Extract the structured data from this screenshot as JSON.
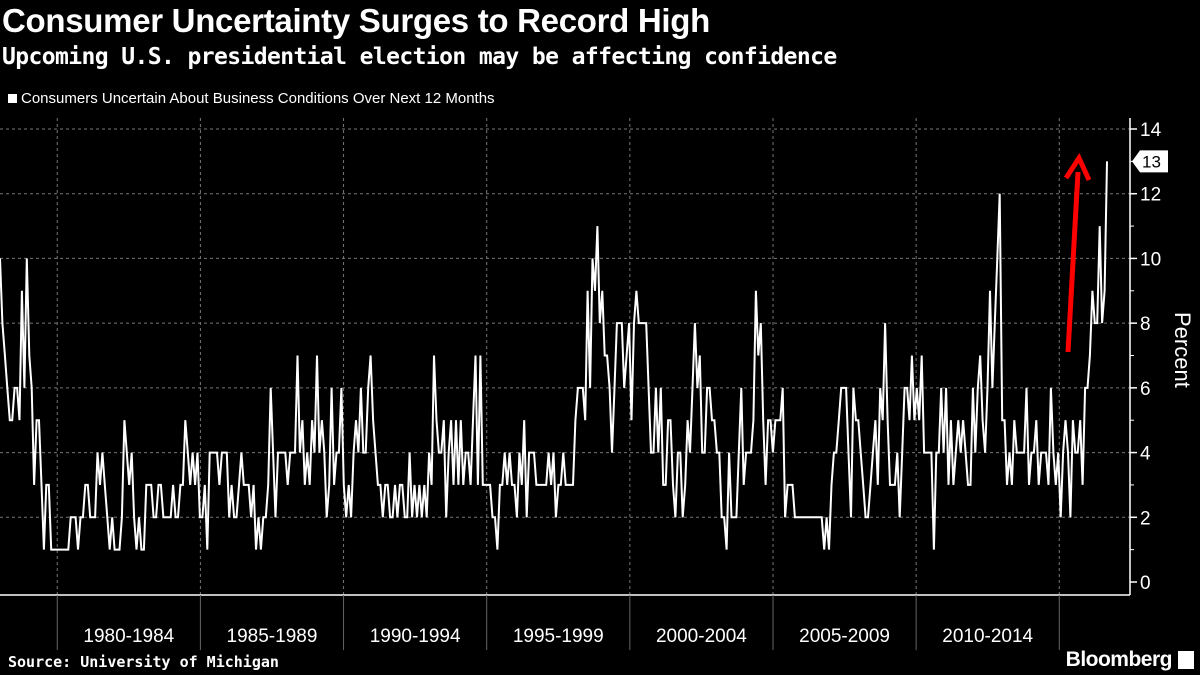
{
  "header": {
    "title": "Consumer Uncertainty Surges to Record High",
    "subtitle": "Upcoming U.S. presidential election may be affecting confidence"
  },
  "footer": {
    "source": "Source: University of Michigan",
    "brand": "Bloomberg"
  },
  "colors": {
    "background": "#000000",
    "line": "#ffffff",
    "grid": "#777777",
    "arrow": "#ff0000"
  },
  "chart_data": {
    "type": "line",
    "title": "Consumer Uncertainty Surges to Record High",
    "subtitle": "Upcoming U.S. presidential election may be affecting confidence",
    "legend": [
      "Consumers Uncertain About Business Conditions Over Next 12 Months"
    ],
    "legend_position": "top-left",
    "ylabel": "Percent",
    "y_axis_side": "right",
    "ylim": [
      0,
      14
    ],
    "yticks": [
      0,
      2,
      4,
      6,
      8,
      10,
      12,
      14
    ],
    "xlim": [
      "1978-01",
      "2016-09"
    ],
    "xtick_labels": [
      "1980-1984",
      "1985-1989",
      "1990-1994",
      "1995-1999",
      "2000-2004",
      "2005-2009",
      "2010-2014"
    ],
    "grid": true,
    "last_value_label": "13",
    "annotation": "red-arrow-pointing-up",
    "series": [
      {
        "values": [
          10,
          8,
          7,
          6,
          5,
          5,
          6,
          6,
          5,
          9,
          6,
          10,
          7,
          6,
          3,
          5,
          5,
          3,
          1,
          3,
          3,
          1,
          1,
          1,
          1,
          1,
          1,
          1,
          1,
          2,
          2,
          2,
          1,
          2,
          2,
          3,
          3,
          2,
          2,
          2,
          4,
          3,
          4,
          3,
          2,
          1,
          2,
          1,
          1,
          1,
          2,
          5,
          4,
          3,
          4,
          2,
          1,
          2,
          1,
          1,
          3,
          3,
          3,
          2,
          2,
          3,
          3,
          2,
          2,
          2,
          2,
          3,
          2,
          2,
          3,
          3,
          5,
          4,
          3,
          4,
          3,
          4,
          2,
          2,
          3,
          1,
          4,
          4,
          4,
          4,
          3,
          4,
          4,
          4,
          2,
          3,
          2,
          2,
          3,
          4,
          3,
          3,
          3,
          2,
          3,
          1,
          2,
          1,
          2,
          2,
          3,
          6,
          4,
          2,
          4,
          4,
          4,
          4,
          3,
          4,
          4,
          4,
          7,
          4,
          5,
          3,
          4,
          3,
          5,
          4,
          7,
          4,
          5,
          4,
          2,
          3,
          6,
          3,
          4,
          4,
          6,
          3,
          2,
          3,
          2,
          4,
          5,
          4,
          6,
          4,
          4,
          6,
          7,
          5,
          4,
          3,
          3,
          2,
          3,
          3,
          2,
          2,
          3,
          2,
          3,
          3,
          2,
          2,
          4,
          2,
          3,
          2,
          3,
          2,
          3,
          2,
          4,
          3,
          7,
          5,
          4,
          4,
          5,
          2,
          4,
          5,
          3,
          5,
          3,
          5,
          3,
          4,
          4,
          3,
          5,
          7,
          3,
          7,
          3,
          3,
          3,
          3,
          2,
          2,
          1,
          3,
          3,
          4,
          3,
          4,
          3,
          3,
          2,
          4,
          3,
          5,
          2,
          4,
          4,
          4,
          3,
          3,
          3,
          3,
          3,
          4,
          3,
          4,
          2,
          3,
          3,
          4,
          3,
          3,
          3,
          3,
          5,
          6,
          6,
          6,
          5,
          9,
          6,
          10,
          9,
          11,
          8,
          9,
          7,
          7,
          6,
          4,
          6,
          8,
          8,
          8,
          6,
          7,
          8,
          5,
          8,
          9,
          8,
          8,
          8,
          8,
          6,
          4,
          4,
          6,
          4,
          6,
          3,
          3,
          5,
          5,
          3,
          2,
          4,
          4,
          2,
          3,
          5,
          4,
          6,
          8,
          6,
          7,
          4,
          4,
          6,
          6,
          5,
          5,
          4,
          4,
          2,
          2,
          1,
          4,
          2,
          2,
          2,
          4,
          6,
          3,
          4,
          4,
          4,
          5,
          9,
          7,
          8,
          5,
          3,
          5,
          5,
          4,
          5,
          5,
          5,
          6,
          2,
          3,
          3,
          3,
          2,
          2,
          2,
          2,
          2,
          2,
          2,
          2,
          2,
          2,
          2,
          2,
          1,
          2,
          1,
          3,
          4,
          4,
          5,
          6,
          6,
          6,
          4,
          2,
          6,
          5,
          5,
          4,
          3,
          2,
          2,
          3,
          4,
          5,
          3,
          6,
          5,
          8,
          5,
          3,
          3,
          3,
          4,
          2,
          4,
          6,
          6,
          5,
          7,
          5,
          6,
          5,
          7,
          4,
          4,
          4,
          4,
          1,
          4,
          4,
          6,
          4,
          6,
          3,
          5,
          3,
          4,
          5,
          4,
          5,
          4,
          3,
          3,
          6,
          4,
          6,
          7,
          5,
          4,
          6,
          9,
          6,
          8,
          10,
          12,
          5,
          5,
          3,
          4,
          3,
          5,
          4,
          4,
          4,
          4,
          6,
          3,
          4,
          4,
          5,
          3,
          4,
          4,
          4,
          3,
          6,
          4,
          3,
          4,
          2,
          4,
          5,
          4,
          2,
          5,
          4,
          4,
          5,
          3,
          6,
          6,
          7,
          9,
          8,
          8,
          11,
          8,
          9,
          13
        ]
      }
    ]
  }
}
